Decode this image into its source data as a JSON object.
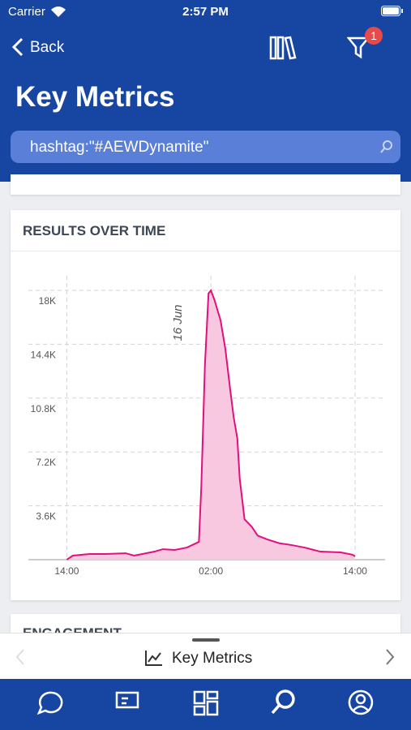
{
  "status_bar": {
    "carrier": "Carrier",
    "time": "2:57 PM"
  },
  "nav": {
    "back": "Back",
    "filter_badge": "1"
  },
  "header": {
    "title": "Key Metrics",
    "search": "hashtag:\"#AEWDynamite\""
  },
  "card": {
    "title": "RESULTS OVER TIME"
  },
  "next_card": {
    "title": "ENGAGEMENT"
  },
  "bottom_panel": {
    "title": "Key Metrics"
  },
  "chart_data": {
    "type": "area",
    "annotation": "16 Jun",
    "annotation_x": 12,
    "color": "#e0117f",
    "fill": "#f8c8e0",
    "x": [
      0,
      0.5,
      1.9,
      3.2,
      4.9,
      5.6,
      6.3,
      7.3,
      8,
      9,
      10,
      11,
      11.2,
      11.5,
      11.8,
      12,
      12.3,
      12.8,
      13.2,
      13.6,
      13.9,
      14.2,
      14.4,
      14.8,
      15.4,
      15.9,
      16.7,
      17.7,
      18.7,
      19.8,
      21.1,
      22.8,
      23.8,
      24
    ],
    "values": [
      0,
      270,
      380,
      380,
      430,
      270,
      380,
      540,
      700,
      650,
      810,
      1190,
      4900,
      13000,
      17800,
      18000,
      17350,
      16000,
      14100,
      11400,
      9500,
      8100,
      5400,
      2700,
      2200,
      1600,
      1350,
      1100,
      980,
      810,
      540,
      490,
      330,
      220
    ],
    "xlim": [
      -3.2,
      26.5
    ],
    "ylim": [
      0,
      18000
    ],
    "xticks": [
      {
        "value": 0,
        "label": "14:00"
      },
      {
        "value": 12,
        "label": "02:00"
      },
      {
        "value": 24,
        "label": "14:00"
      }
    ],
    "yticks": [
      {
        "value": 3600,
        "label": "3.6K"
      },
      {
        "value": 7200,
        "label": "7.2K"
      },
      {
        "value": 10800,
        "label": "10.8K"
      },
      {
        "value": 14400,
        "label": "14.4K"
      },
      {
        "value": 18000,
        "label": "18K"
      }
    ],
    "grid": true
  }
}
